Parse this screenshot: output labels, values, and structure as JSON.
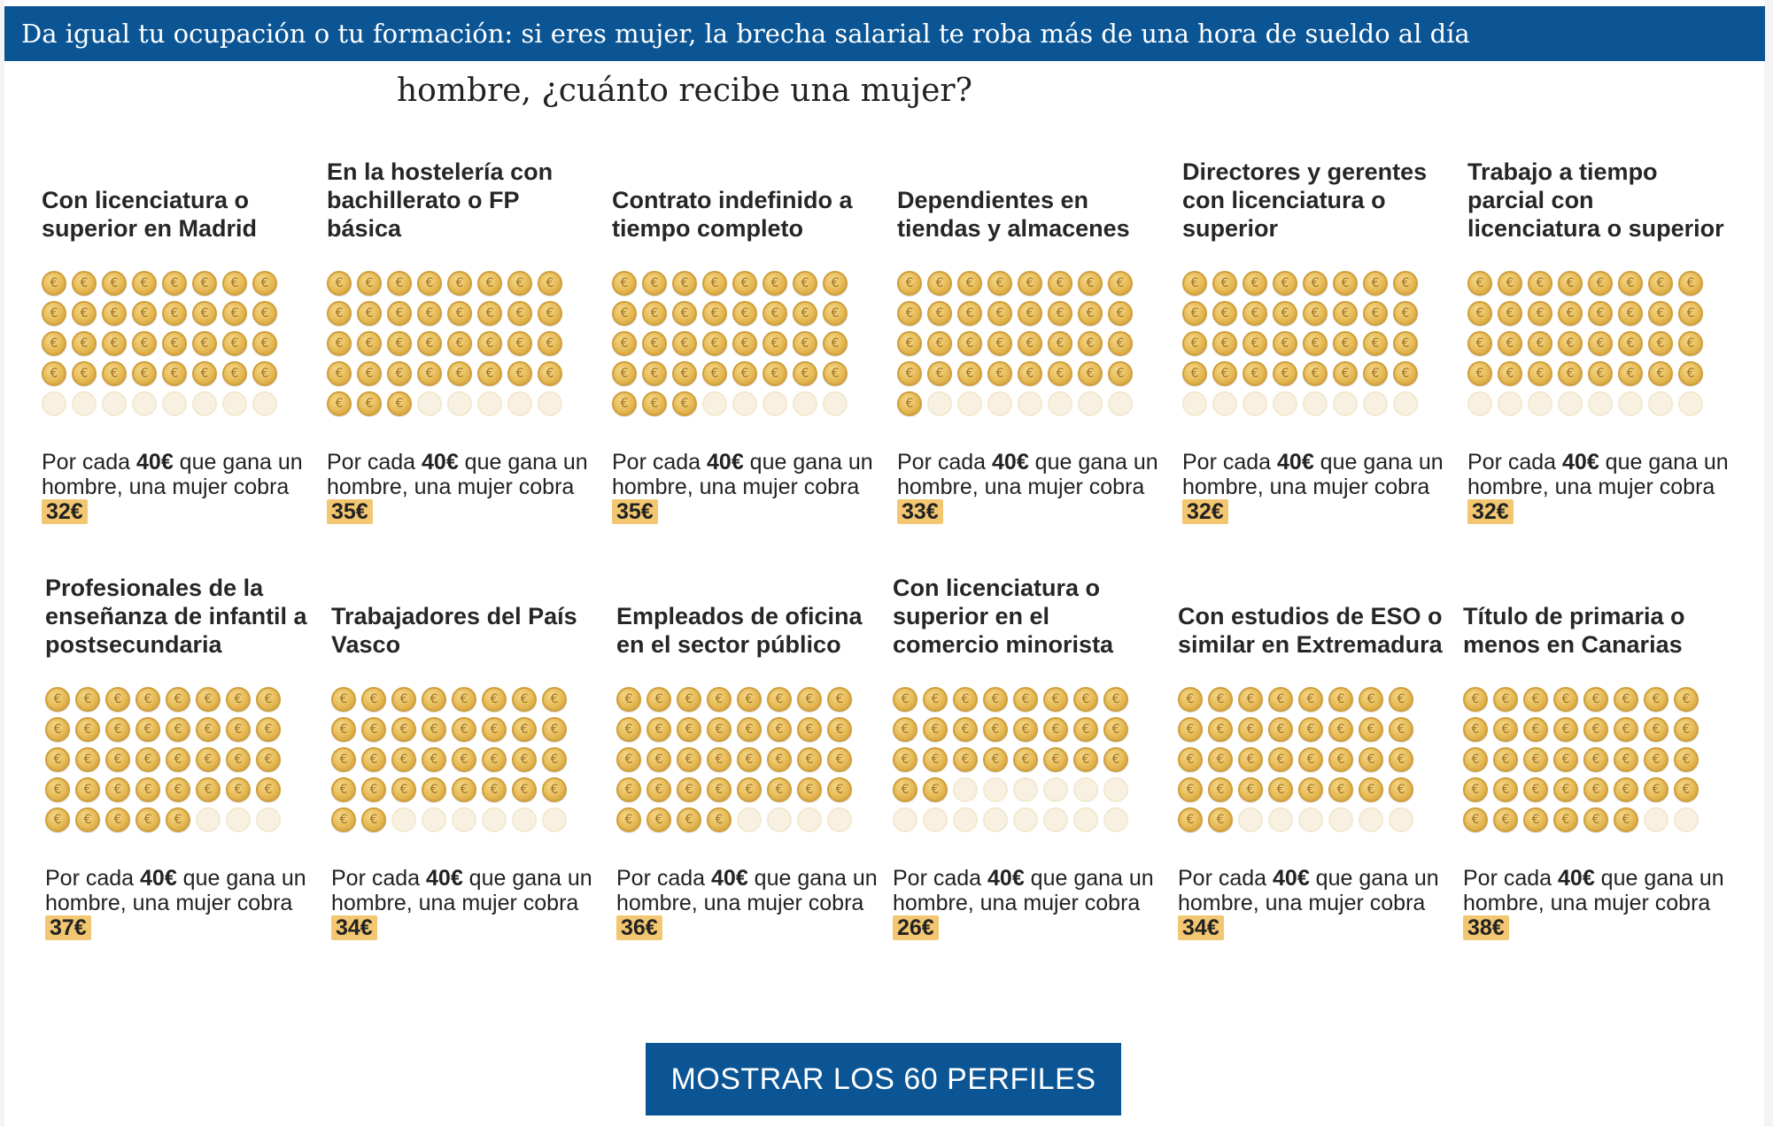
{
  "topbar": {
    "title": "Da igual tu ocupación o tu formación: si eres mujer, la brecha salarial te roba más de una hora de sueldo al día"
  },
  "subtitle": "hombre, ¿cuánto recibe una mujer?",
  "coin_icon": "euro-coin-icon",
  "colors": {
    "accent": "#0b5595",
    "badge": "#f3c772",
    "coin": "#e6b954"
  },
  "labels": {
    "prefix": "Por cada ",
    "reference": "40€",
    "middle": " que gana un hombre, una mujer cobra "
  },
  "total_coins": 40,
  "profiles": [
    {
      "title": "Con licenciatura o superior en Madrid",
      "amount": "32€",
      "filled": 32
    },
    {
      "title": "En la hostelería con bachillerato o FP básica",
      "amount": "35€",
      "filled": 35
    },
    {
      "title": "Contrato indefinido a tiempo completo",
      "amount": "35€",
      "filled": 35
    },
    {
      "title": "Dependientes en tiendas y almacenes",
      "amount": "33€",
      "filled": 33
    },
    {
      "title": "Directores y gerentes con licenciatura o superior",
      "amount": "32€",
      "filled": 32
    },
    {
      "title": "Trabajo a tiempo parcial con licenciatura o superior",
      "amount": "32€",
      "filled": 32
    },
    {
      "title": "Profesionales de la enseñanza de infantil a postsecundaria",
      "amount": "37€",
      "filled": 37
    },
    {
      "title": "Trabajadores del País Vasco",
      "amount": "34€",
      "filled": 34
    },
    {
      "title": "Empleados de oficina en el sector público",
      "amount": "36€",
      "filled": 36
    },
    {
      "title": "Con licenciatura o superior en el comercio minorista",
      "amount": "26€",
      "filled": 26
    },
    {
      "title": "Con estudios de ESO o similar en Extremadura",
      "amount": "34€",
      "filled": 34
    },
    {
      "title": "Título de primaria o menos en Canarias",
      "amount": "38€",
      "filled": 38
    }
  ],
  "cta": {
    "label": "MOSTRAR LOS 60 PERFILES"
  }
}
